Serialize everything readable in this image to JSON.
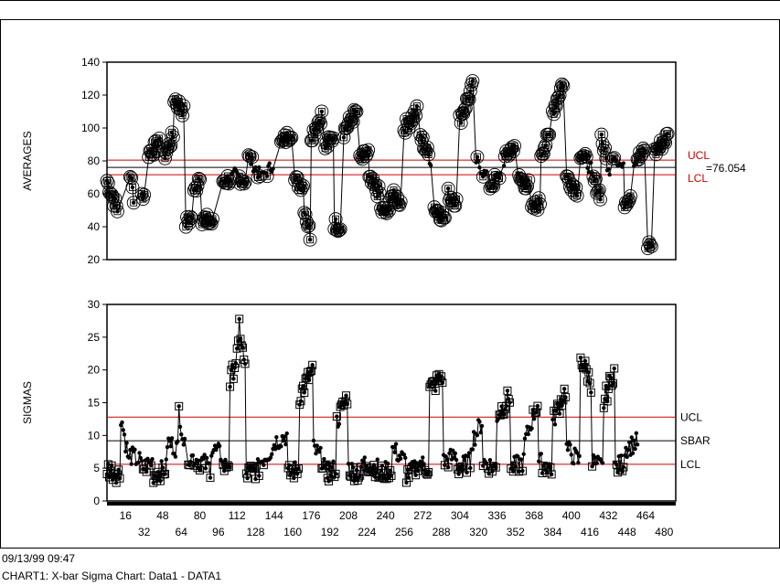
{
  "footer": {
    "timestamp": "09/13/99 09:47",
    "caption": "CHART1: X-bar Sigma Chart:  Data1 - DATA1"
  },
  "chart_data": [
    {
      "type": "line",
      "ylabel": "AVERAGES",
      "ylim": [
        20,
        140
      ],
      "yticks": [
        20,
        40,
        60,
        80,
        100,
        120,
        140
      ],
      "xlim": [
        1,
        490
      ],
      "grid": false,
      "control_limits": [
        {
          "name": "UCL",
          "value": 80.5,
          "color": "#cc0000"
        },
        {
          "name": "LCL",
          "value": 71.6,
          "color": "#cc0000"
        },
        {
          "name": "=76.054",
          "value": 76.054,
          "color": "#000000"
        }
      ],
      "segments": [
        [
          0,
          68,
          50,
          10
        ],
        [
          20,
          72,
          58,
          4
        ],
        [
          30,
          60,
          58,
          3
        ],
        [
          36,
          85,
          90,
          10
        ],
        [
          50,
          84,
          95,
          8
        ],
        [
          58,
          118,
          110,
          9
        ],
        [
          68,
          42,
          46,
          6
        ],
        [
          75,
          60,
          72,
          6
        ],
        [
          82,
          45,
          42,
          10
        ],
        [
          100,
          68,
          70,
          10
        ],
        [
          110,
          72,
          68,
          10
        ],
        [
          122,
          82,
          70,
          12
        ],
        [
          136,
          72,
          78,
          8
        ],
        [
          150,
          90,
          98,
          10
        ],
        [
          162,
          68,
          65,
          8
        ],
        [
          170,
          52,
          35,
          6
        ],
        [
          176,
          95,
          108,
          10
        ],
        [
          188,
          88,
          95,
          8
        ],
        [
          196,
          42,
          40,
          6
        ],
        [
          204,
          98,
          110,
          12
        ],
        [
          218,
          80,
          85,
          8
        ],
        [
          226,
          68,
          60,
          10
        ],
        [
          236,
          50,
          48,
          8
        ],
        [
          244,
          60,
          55,
          10
        ],
        [
          256,
          100,
          110,
          12
        ],
        [
          270,
          95,
          80,
          10
        ],
        [
          282,
          52,
          45,
          10
        ],
        [
          294,
          60,
          55,
          8
        ],
        [
          304,
          105,
          125,
          12
        ],
        [
          318,
          80,
          70,
          10
        ],
        [
          330,
          65,
          72,
          10
        ],
        [
          342,
          80,
          90,
          10
        ],
        [
          354,
          70,
          65,
          10
        ],
        [
          366,
          50,
          55,
          8
        ],
        [
          374,
          85,
          95,
          8
        ],
        [
          384,
          110,
          128,
          10
        ],
        [
          396,
          70,
          62,
          10
        ],
        [
          408,
          85,
          75,
          10
        ],
        [
          418,
          70,
          60,
          8
        ],
        [
          426,
          95,
          70,
          8
        ],
        [
          436,
          85,
          75,
          10
        ],
        [
          446,
          55,
          60,
          6
        ],
        [
          454,
          80,
          85,
          10
        ],
        [
          466,
          28,
          30,
          4
        ],
        [
          472,
          85,
          95,
          12
        ]
      ]
    },
    {
      "type": "line",
      "ylabel": "SIGMAS",
      "ylim": [
        0,
        30
      ],
      "yticks": [
        0,
        5,
        10,
        15,
        20,
        25,
        30
      ],
      "xlim": [
        1,
        490
      ],
      "xticks_upper": [
        "16",
        "48",
        "80",
        "112",
        "144",
        "176",
        "208",
        "240",
        "272",
        "304",
        "336",
        "368",
        "400",
        "432",
        "464"
      ],
      "xticks_lower": [
        "32",
        "64",
        "96",
        "128",
        "160",
        "192",
        "224",
        "256",
        "288",
        "320",
        "352",
        "384",
        "416",
        "448",
        "480"
      ],
      "grid": false,
      "control_limits": [
        {
          "name": "UCL",
          "value": 12.8,
          "color": "#cc0000"
        },
        {
          "name": "SBAR",
          "value": 9.2,
          "color": "#000000"
        },
        {
          "name": "LCL",
          "value": 5.6,
          "color": "#cc0000"
        }
      ],
      "segments": [
        [
          0,
          5,
          4,
          12
        ],
        [
          12,
          13,
          6,
          8
        ],
        [
          20,
          7,
          6,
          10
        ],
        [
          30,
          5,
          6,
          10
        ],
        [
          40,
          4,
          5,
          12
        ],
        [
          52,
          9,
          8,
          10
        ],
        [
          62,
          14,
          8,
          6
        ],
        [
          70,
          7,
          6,
          12
        ],
        [
          82,
          6,
          5,
          8
        ],
        [
          90,
          8,
          7,
          10
        ],
        [
          100,
          5,
          6,
          6
        ],
        [
          106,
          18,
          23,
          8
        ],
        [
          114,
          27,
          20,
          6
        ],
        [
          120,
          4,
          5,
          12
        ],
        [
          132,
          6,
          8,
          12
        ],
        [
          144,
          9,
          10,
          12
        ],
        [
          156,
          4,
          5,
          10
        ],
        [
          166,
          16,
          20,
          12
        ],
        [
          178,
          8,
          6,
          10
        ],
        [
          188,
          4,
          5,
          10
        ],
        [
          198,
          12,
          16,
          10
        ],
        [
          208,
          5,
          4,
          12
        ],
        [
          220,
          6,
          5,
          14
        ],
        [
          234,
          4,
          5,
          12
        ],
        [
          246,
          8,
          6,
          12
        ],
        [
          258,
          4,
          5,
          10
        ],
        [
          268,
          6,
          5,
          10
        ],
        [
          278,
          17,
          19,
          12
        ],
        [
          290,
          6,
          7,
          12
        ],
        [
          302,
          5,
          6,
          12
        ],
        [
          314,
          9,
          12,
          10
        ],
        [
          324,
          6,
          5,
          12
        ],
        [
          336,
          13,
          16,
          12
        ],
        [
          348,
          5,
          6,
          12
        ],
        [
          360,
          9,
          15,
          12
        ],
        [
          372,
          6,
          5,
          12
        ],
        [
          384,
          12,
          17,
          12
        ],
        [
          396,
          8,
          6,
          12
        ],
        [
          408,
          22,
          18,
          10
        ],
        [
          418,
          6,
          5,
          10
        ],
        [
          428,
          15,
          20,
          10
        ],
        [
          438,
          5,
          6,
          8
        ],
        [
          446,
          8,
          9,
          12
        ]
      ]
    }
  ]
}
